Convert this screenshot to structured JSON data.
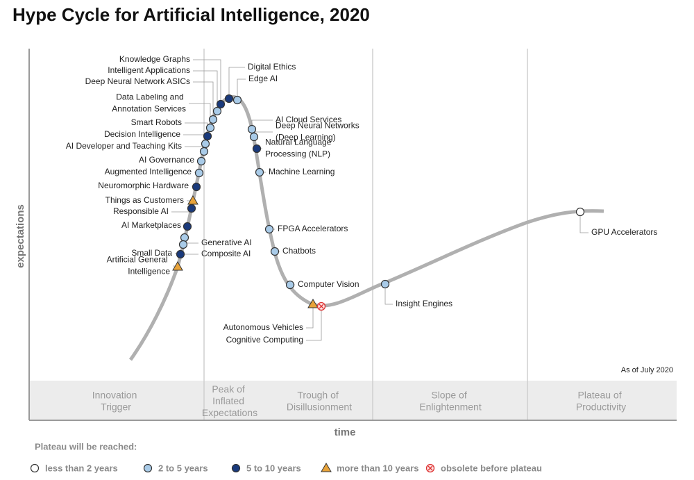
{
  "title": "Hype Cycle for Artificial Intelligence, 2020",
  "y_axis_label": "expectations",
  "x_axis_label": "time",
  "as_of": "As of July 2020",
  "phases": [
    "Innovation Trigger",
    "Peak of Inflated Expectations",
    "Trough of Disillusionment",
    "Slope of Enlightenment",
    "Plateau of Productivity"
  ],
  "legend": {
    "title": "Plateau will be reached:",
    "items": [
      {
        "label": "less than 2 years",
        "technologies": [
          "GPU Accelerators"
        ]
      },
      {
        "label": "2 to 5 years",
        "technologies": [
          "Edge AI",
          "Intelligent Applications",
          "Deep Neural Network ASICs",
          "Data Labeling and Annotation Services",
          "Decision Intelligence",
          "AI Developer and Teaching Kits",
          "AI Governance",
          "Augmented Intelligence",
          "Generative AI",
          "Composite AI",
          "AI Cloud Services",
          "Deep Neural Networks (Deep Learning)",
          "Machine Learning",
          "FPGA Accelerators",
          "Chatbots",
          "Computer Vision",
          "Insight Engines"
        ]
      },
      {
        "label": "5 to 10 years",
        "technologies": [
          "Digital Ethics",
          "Knowledge Graphs",
          "Smart Robots",
          "Neuromorphic Hardware",
          "Responsible AI",
          "AI Marketplaces",
          "Small Data",
          "Natural Language Processing (NLP)"
        ]
      },
      {
        "label": "more than 10 years",
        "technologies": [
          "Things as Customers",
          "Artificial General Intelligence",
          "Autonomous Vehicles"
        ]
      },
      {
        "label": "obsolete before plateau",
        "technologies": [
          "Cognitive Computing"
        ]
      }
    ]
  }
}
